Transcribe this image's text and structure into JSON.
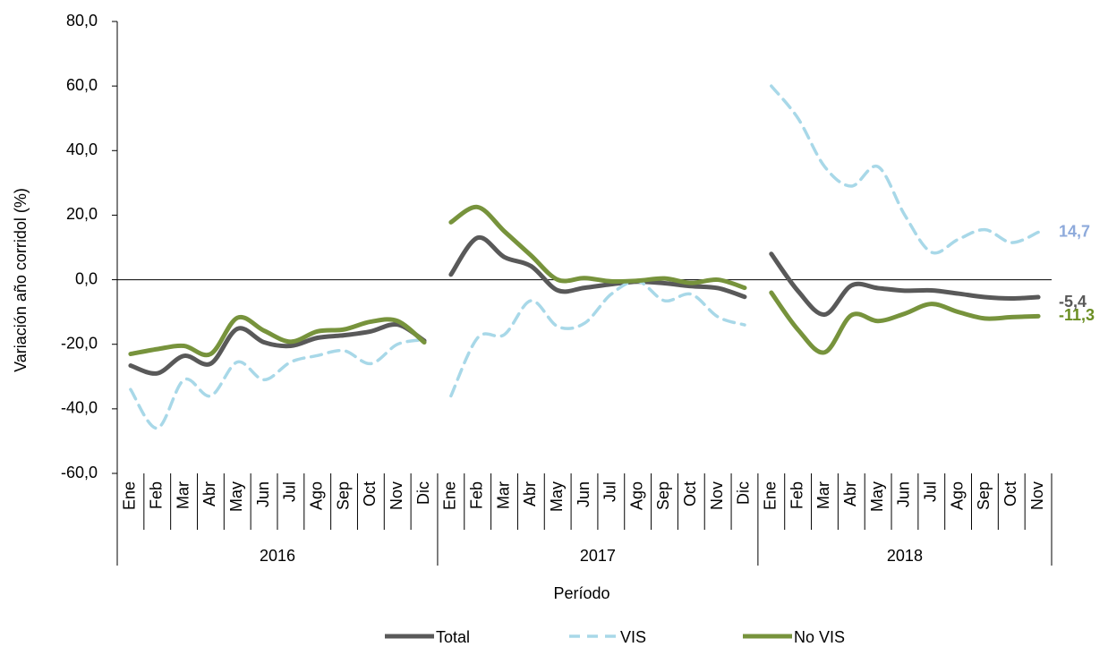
{
  "chart_data": {
    "type": "line",
    "y_label": "Variación año corridol (%)",
    "x_label": "Período",
    "groups": [
      {
        "name": "2016",
        "categories": [
          "Ene",
          "Feb",
          "Mar",
          "Abr",
          "May",
          "Jun",
          "Jul",
          "Ago",
          "Sep",
          "Oct",
          "Nov",
          "Dic"
        ]
      },
      {
        "name": "2017",
        "categories": [
          "Ene",
          "Feb",
          "Mar",
          "Abr",
          "May",
          "Jun",
          "Jul",
          "Ago",
          "Sep",
          "Oct",
          "Nov",
          "Dic"
        ]
      },
      {
        "name": "2018",
        "categories": [
          "Ene",
          "Feb",
          "Mar",
          "Abr",
          "May",
          "Jun",
          "Jul",
          "Ago",
          "Sep",
          "Oct",
          "Nov"
        ]
      }
    ],
    "ylim": [
      -60,
      80
    ],
    "yticks": [
      {
        "value": -60,
        "label": "-60,0"
      },
      {
        "value": -40,
        "label": "-40,0"
      },
      {
        "value": -20,
        "label": "-20,0"
      },
      {
        "value": 0,
        "label": "0,0"
      },
      {
        "value": 20,
        "label": "20,0"
      },
      {
        "value": 40,
        "label": "40,0"
      },
      {
        "value": 60,
        "label": "60,0"
      },
      {
        "value": 80,
        "label": "80,0"
      }
    ],
    "series": [
      {
        "name": "Total",
        "color": "#595959",
        "dash": false,
        "label_color": "#595959",
        "end_label": "-5,4",
        "values": [
          -26.6,
          -29,
          -23.6,
          -26,
          -15.2,
          -19.4,
          -20.5,
          -18,
          -17.2,
          -16,
          -13.9,
          -18.9,
          1.6,
          13,
          7,
          4.2,
          -3.3,
          -2.5,
          -1.4,
          -0.6,
          -1.1,
          -2,
          -2.6,
          -5.3,
          8,
          -3.5,
          -10.8,
          -1.8,
          -2.6,
          -3.4,
          -3.3,
          -4.3,
          -5.4,
          -5.8,
          -5.4
        ]
      },
      {
        "name": "VIS",
        "color": "#a8d8e8",
        "dash": true,
        "label_color": "#8eaadb",
        "end_label": "14,7",
        "values": [
          -34,
          -46,
          -31,
          -36,
          -25.5,
          -31,
          -25.5,
          -23.5,
          -22,
          -26,
          -20,
          -18.6,
          -36,
          -18,
          -17,
          -6.5,
          -14.5,
          -13.5,
          -4.5,
          -0.5,
          -6.5,
          -4.5,
          -11.5,
          -14,
          60,
          50,
          35,
          29,
          35,
          20,
          8.5,
          12.5,
          15.5,
          11.5,
          14.7
        ]
      },
      {
        "name": "No VIS",
        "color": "#77933c",
        "dash": false,
        "label_color": "#6b8e23",
        "end_label": "-11,3",
        "values": [
          -23,
          -21.5,
          -20.5,
          -23,
          -11.8,
          -15.8,
          -19.2,
          -16,
          -15.4,
          -13,
          -12.8,
          -19.4,
          17.8,
          22.5,
          15,
          7.5,
          0,
          0.5,
          -0.5,
          -0.3,
          0.4,
          -1,
          0,
          -2.5,
          -4,
          -15.5,
          -22.5,
          -11,
          -12.8,
          -10.5,
          -7.5,
          -10,
          -12,
          -11.6,
          -11.3
        ]
      }
    ]
  }
}
